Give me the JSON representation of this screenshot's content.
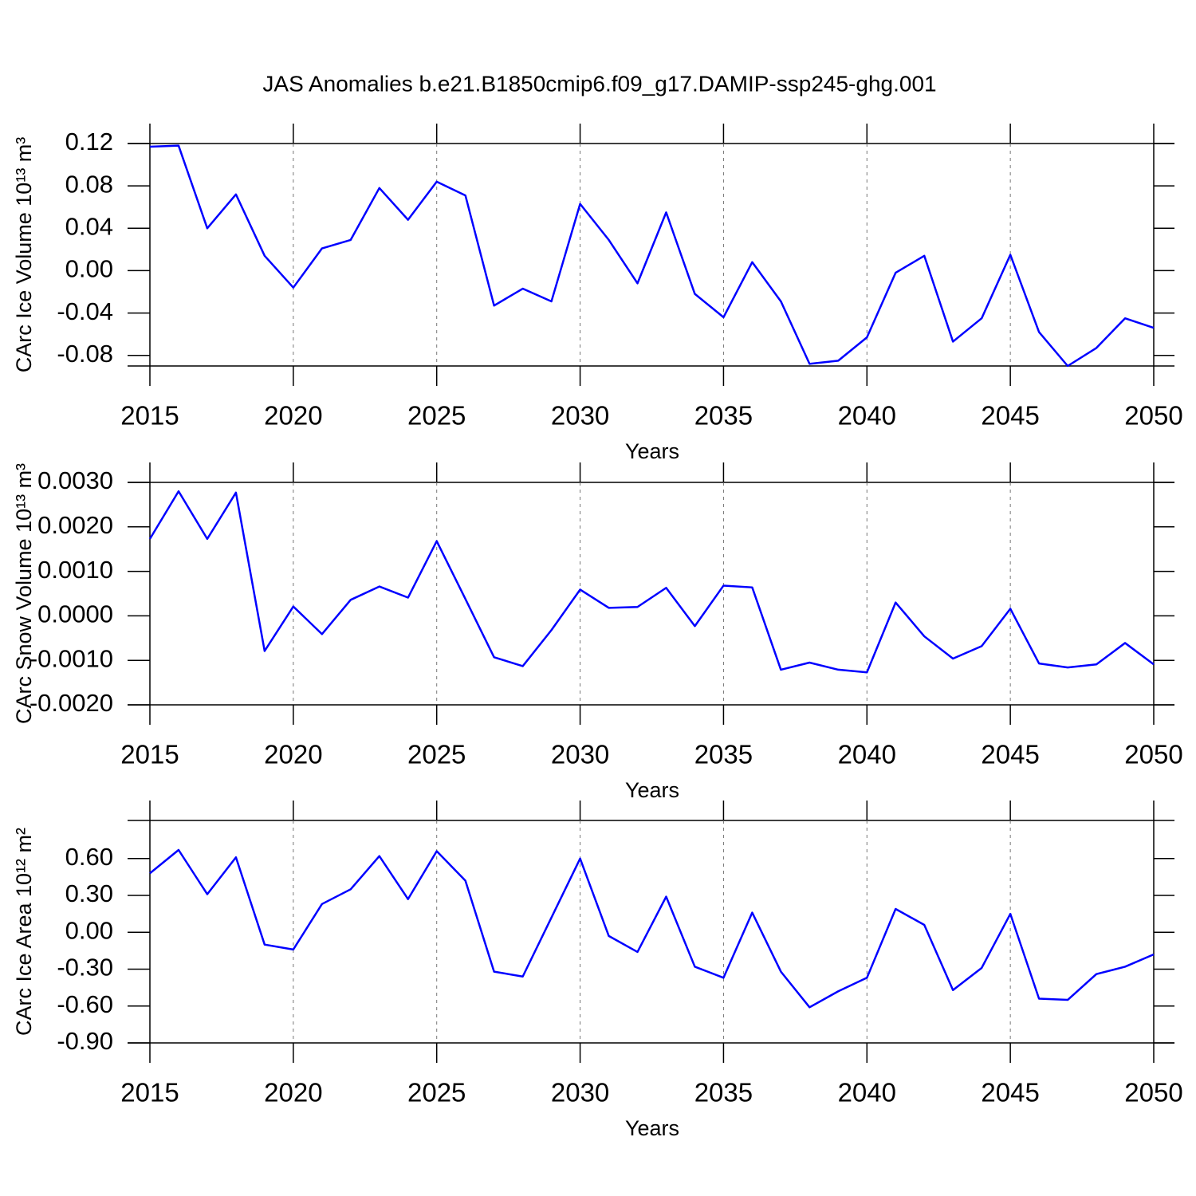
{
  "chart_data": [
    {
      "type": "line",
      "title": "JAS Anomalies b.e21.B1850cmip6.f09_g17.DAMIP-ssp245-ghg.001",
      "ylabel": "CArc Ice Volume 10¹³ m³",
      "xlabel": "Years",
      "color": "#0000ff",
      "grid": true,
      "x": [
        2015,
        2016,
        2017,
        2018,
        2019,
        2020,
        2021,
        2022,
        2023,
        2024,
        2025,
        2026,
        2027,
        2028,
        2029,
        2030,
        2031,
        2032,
        2033,
        2034,
        2035,
        2036,
        2037,
        2038,
        2039,
        2040,
        2041,
        2042,
        2043,
        2044,
        2045,
        2046,
        2047,
        2048,
        2049,
        2050
      ],
      "values": [
        0.117,
        0.118,
        0.04,
        0.072,
        0.014,
        -0.016,
        0.021,
        0.029,
        0.078,
        0.048,
        0.084,
        0.071,
        -0.033,
        -0.017,
        -0.029,
        0.063,
        0.029,
        -0.012,
        0.055,
        -0.022,
        -0.044,
        0.008,
        -0.029,
        -0.088,
        -0.085,
        -0.063,
        -0.002,
        0.014,
        -0.067,
        -0.045,
        0.015,
        -0.058,
        -0.09,
        -0.073,
        -0.045,
        -0.054
      ],
      "xlim": [
        2015,
        2050
      ],
      "xticks": [
        2015,
        2020,
        2025,
        2030,
        2035,
        2040,
        2045,
        2050
      ],
      "ylim": [
        -0.09,
        0.12
      ],
      "yticks": [
        0.12,
        0.08,
        0.04,
        {
          "value": 0,
          "label": "0.00"
        },
        -0.04,
        -0.08
      ]
    },
    {
      "type": "line",
      "ylabel": "CArc Snow Volume 10¹³ m³",
      "xlabel": "Years",
      "color": "#0000ff",
      "grid": true,
      "x": [
        2015,
        2016,
        2017,
        2018,
        2019,
        2020,
        2021,
        2022,
        2023,
        2024,
        2025,
        2026,
        2027,
        2028,
        2029,
        2030,
        2031,
        2032,
        2033,
        2034,
        2035,
        2036,
        2037,
        2038,
        2039,
        2040,
        2041,
        2042,
        2043,
        2044,
        2045,
        2046,
        2047,
        2048,
        2049,
        2050
      ],
      "values": [
        0.00173,
        0.0028,
        0.00173,
        0.00277,
        -0.00079,
        0.00021,
        -0.00041,
        0.00036,
        0.00066,
        0.00041,
        0.00168,
        0.00038,
        -0.00093,
        -0.00113,
        -0.00032,
        0.00059,
        0.00018,
        0.0002,
        0.00063,
        -0.00023,
        0.00068,
        0.00064,
        -0.00121,
        -0.00105,
        -0.00121,
        -0.00127,
        0.0003,
        -0.00046,
        -0.00096,
        -0.00068,
        0.00016,
        -0.00107,
        -0.00116,
        -0.00109,
        -0.00061,
        -0.00109
      ],
      "xlim": [
        2015,
        2050
      ],
      "xticks": [
        2015,
        2020,
        2025,
        2030,
        2035,
        2040,
        2045,
        2050
      ],
      "ylim": [
        -0.002,
        0.003
      ],
      "yticks": [
        {
          "value": 0.003,
          "label": "0.0030"
        },
        {
          "value": 0.002,
          "label": "0.0020"
        },
        {
          "value": 0.001,
          "label": "0.0010"
        },
        {
          "value": 0,
          "label": "0.0000"
        },
        {
          "value": -0.001,
          "label": "-0.0010"
        },
        {
          "value": -0.002,
          "label": "-0.0020"
        }
      ]
    },
    {
      "type": "line",
      "ylabel": "CArc Ice Area 10¹² m²",
      "xlabel": "Years",
      "color": "#0000ff",
      "grid": true,
      "x": [
        2015,
        2016,
        2017,
        2018,
        2019,
        2020,
        2021,
        2022,
        2023,
        2024,
        2025,
        2026,
        2027,
        2028,
        2029,
        2030,
        2031,
        2032,
        2033,
        2034,
        2035,
        2036,
        2037,
        2038,
        2039,
        2040,
        2041,
        2042,
        2043,
        2044,
        2045,
        2046,
        2047,
        2048,
        2049,
        2050
      ],
      "values": [
        0.48,
        0.67,
        0.31,
        0.61,
        -0.1,
        -0.14,
        0.23,
        0.35,
        0.62,
        0.27,
        0.66,
        0.42,
        -0.32,
        -0.36,
        0.12,
        0.6,
        -0.03,
        -0.16,
        0.29,
        -0.28,
        -0.37,
        0.16,
        -0.32,
        -0.61,
        -0.48,
        -0.37,
        0.19,
        0.06,
        -0.47,
        -0.29,
        0.15,
        -0.54,
        -0.55,
        -0.34,
        -0.28,
        -0.18
      ],
      "xlim": [
        2015,
        2050
      ],
      "xticks": [
        2015,
        2020,
        2025,
        2030,
        2035,
        2040,
        2045,
        2050
      ],
      "ylim": [
        -0.9,
        0.91
      ],
      "yticks": [
        {
          "value": 0.6,
          "label": "0.60"
        },
        {
          "value": 0.3,
          "label": "0.30"
        },
        {
          "value": 0,
          "label": "0.00"
        },
        {
          "value": -0.3,
          "label": "-0.30"
        },
        {
          "value": -0.6,
          "label": "-0.60"
        },
        {
          "value": -0.9,
          "label": "-0.90"
        }
      ]
    }
  ]
}
